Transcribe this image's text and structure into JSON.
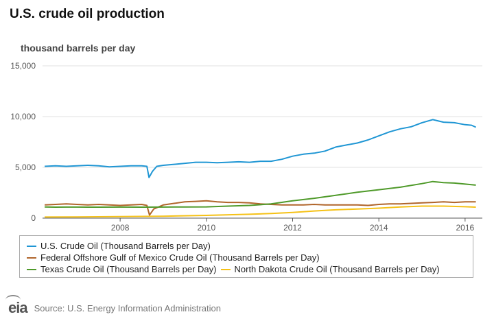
{
  "title": "U.S. crude oil production",
  "units_label": "thousand barrels per day",
  "source": "Source: U.S. Energy Information Administration",
  "logo_text": "eia",
  "colors": {
    "us": "#1f96d4",
    "gulf": "#b0652a",
    "texas": "#4f9a2a",
    "north_dakota": "#f5c116",
    "grid": "#e2e2e2",
    "axis": "#555555"
  },
  "chart_data": {
    "type": "line",
    "title": "U.S. crude oil production",
    "ylabel": "thousand barrels per day",
    "xlabel": "",
    "xlim": [
      2006.2,
      2016.4
    ],
    "ylim": [
      0,
      15000
    ],
    "y_ticks": [
      0,
      5000,
      10000,
      15000
    ],
    "y_tick_labels": [
      "0",
      "5,000",
      "10,000",
      "15,000"
    ],
    "x_ticks": [
      2008,
      2010,
      2012,
      2014,
      2016
    ],
    "x_tick_labels": [
      "2008",
      "2010",
      "2012",
      "2014",
      "2016"
    ],
    "legend_position": "bottom",
    "series": [
      {
        "key": "us",
        "name": "U.S. Crude Oil (Thousand Barrels per Day)",
        "x": [
          2006.25,
          2006.5,
          2006.75,
          2007.0,
          2007.25,
          2007.5,
          2007.75,
          2008.0,
          2008.25,
          2008.5,
          2008.62,
          2008.67,
          2008.75,
          2008.85,
          2009.0,
          2009.25,
          2009.5,
          2009.75,
          2010.0,
          2010.25,
          2010.5,
          2010.75,
          2011.0,
          2011.25,
          2011.5,
          2011.75,
          2012.0,
          2012.25,
          2012.5,
          2012.75,
          2013.0,
          2013.25,
          2013.5,
          2013.75,
          2014.0,
          2014.25,
          2014.5,
          2014.75,
          2015.0,
          2015.25,
          2015.5,
          2015.75,
          2016.0,
          2016.15,
          2016.25
        ],
        "values": [
          5100,
          5150,
          5100,
          5150,
          5200,
          5150,
          5050,
          5100,
          5150,
          5150,
          5100,
          4000,
          4600,
          5100,
          5200,
          5300,
          5400,
          5500,
          5500,
          5450,
          5500,
          5550,
          5500,
          5600,
          5600,
          5800,
          6100,
          6300,
          6400,
          6600,
          7000,
          7200,
          7400,
          7700,
          8100,
          8500,
          8800,
          9000,
          9400,
          9700,
          9450,
          9400,
          9200,
          9150,
          8950
        ]
      },
      {
        "key": "gulf",
        "name": "Federal Offshore Gulf of Mexico Crude Oil (Thousand Barrels per Day)",
        "x": [
          2006.25,
          2006.5,
          2006.75,
          2007.0,
          2007.25,
          2007.5,
          2007.75,
          2008.0,
          2008.25,
          2008.5,
          2008.62,
          2008.68,
          2008.78,
          2009.0,
          2009.25,
          2009.5,
          2009.75,
          2010.0,
          2010.25,
          2010.5,
          2010.75,
          2011.0,
          2011.25,
          2011.5,
          2011.75,
          2012.0,
          2012.25,
          2012.5,
          2012.75,
          2013.0,
          2013.25,
          2013.5,
          2013.75,
          2014.0,
          2014.25,
          2014.5,
          2014.75,
          2015.0,
          2015.25,
          2015.5,
          2015.75,
          2016.0,
          2016.25
        ],
        "values": [
          1300,
          1350,
          1400,
          1350,
          1300,
          1350,
          1300,
          1250,
          1300,
          1350,
          1250,
          300,
          900,
          1300,
          1450,
          1600,
          1650,
          1700,
          1600,
          1550,
          1550,
          1500,
          1400,
          1350,
          1300,
          1300,
          1300,
          1350,
          1300,
          1300,
          1300,
          1300,
          1250,
          1350,
          1400,
          1400,
          1450,
          1500,
          1550,
          1600,
          1550,
          1600,
          1600
        ]
      },
      {
        "key": "texas",
        "name": "Texas Crude Oil (Thousand Barrels per Day)",
        "x": [
          2006.25,
          2006.5,
          2006.75,
          2007.0,
          2007.5,
          2008.0,
          2008.5,
          2009.0,
          2009.5,
          2010.0,
          2010.5,
          2011.0,
          2011.5,
          2012.0,
          2012.5,
          2013.0,
          2013.5,
          2014.0,
          2014.5,
          2015.0,
          2015.25,
          2015.5,
          2015.75,
          2016.0,
          2016.25
        ],
        "values": [
          1100,
          1080,
          1090,
          1090,
          1080,
          1090,
          1080,
          1090,
          1100,
          1110,
          1180,
          1250,
          1400,
          1700,
          1950,
          2250,
          2550,
          2800,
          3050,
          3400,
          3600,
          3500,
          3450,
          3350,
          3250
        ]
      },
      {
        "key": "north_dakota",
        "name": "North Dakota Crude Oil (Thousand Barrels per Day)",
        "x": [
          2006.25,
          2007.0,
          2008.0,
          2009.0,
          2010.0,
          2011.0,
          2011.5,
          2012.0,
          2012.5,
          2013.0,
          2013.5,
          2014.0,
          2014.5,
          2015.0,
          2015.5,
          2016.0,
          2016.25
        ],
        "values": [
          110,
          120,
          150,
          190,
          270,
          380,
          450,
          560,
          700,
          820,
          900,
          980,
          1100,
          1180,
          1180,
          1120,
          1080
        ]
      }
    ]
  }
}
